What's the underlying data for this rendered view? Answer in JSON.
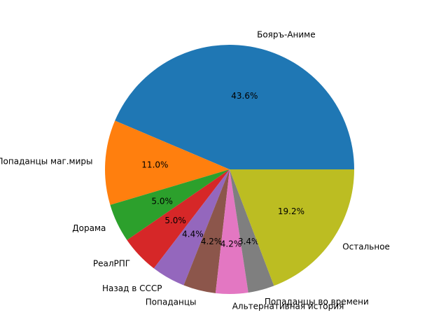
{
  "chart_data": {
    "type": "pie",
    "categories": [
      "Бояръ-Аниме",
      "Попаданцы маг.миры",
      "Дорама",
      "РеалРПГ",
      "Назад в СССР",
      "Попаданцы",
      "Альтернативная история",
      "Попаданцы во времени",
      "Остальное"
    ],
    "values": [
      43.6,
      11.0,
      5.0,
      5.0,
      4.4,
      4.2,
      4.2,
      3.4,
      19.2
    ],
    "value_labels": [
      "43.6%",
      "11.0%",
      "5.0%",
      "5.0%",
      "4.4%",
      "4.2%",
      "4.2%",
      "3.4%",
      "19.2%"
    ],
    "colors": [
      "#1f77b4",
      "#ff7f0e",
      "#2ca02c",
      "#d62728",
      "#9467bd",
      "#8c564b",
      "#e377c2",
      "#7f7f7f",
      "#bcbd22"
    ]
  }
}
